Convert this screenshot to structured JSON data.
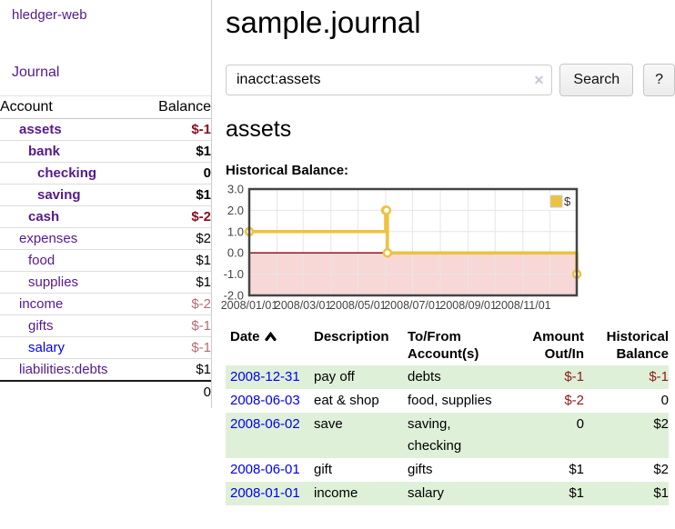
{
  "app_title": "hledger-web",
  "sidebar": {
    "journal_link": "Journal",
    "accounts": {
      "header": {
        "account": "Account",
        "balance": "Balance"
      },
      "rows": [
        {
          "name": "assets",
          "balance": "$-1"
        },
        {
          "name": "bank",
          "balance": "$1"
        },
        {
          "name": "checking",
          "balance": "0"
        },
        {
          "name": "saving",
          "balance": "$1"
        },
        {
          "name": "cash",
          "balance": "$-2"
        },
        {
          "name": "expenses",
          "balance": "$2"
        },
        {
          "name": "food",
          "balance": "$1"
        },
        {
          "name": "supplies",
          "balance": "$1"
        },
        {
          "name": "income",
          "balance": "$-2"
        },
        {
          "name": "gifts",
          "balance": "$-1"
        },
        {
          "name": "salary",
          "balance": "$-1"
        },
        {
          "name": "liabilities:debts",
          "balance": "$1"
        }
      ],
      "total": "0"
    }
  },
  "main": {
    "title": "sample.journal",
    "search": {
      "value": "inacct:assets",
      "clear_icon": "✕",
      "button_label": "Search",
      "help_label": "?"
    },
    "account_heading": "assets",
    "chart_heading": "Historical Balance:"
  },
  "chart_data": {
    "type": "line",
    "step": true,
    "title": "Historical Balance",
    "series": [
      {
        "name": "$",
        "color": "#EDC240",
        "points": [
          [
            "2008-01-01",
            1
          ],
          [
            "2008-06-01",
            2
          ],
          [
            "2008-06-02",
            2
          ],
          [
            "2008-06-03",
            0
          ],
          [
            "2008-12-31",
            -1
          ]
        ]
      }
    ],
    "xrange": [
      "2008-01-01",
      "2008-12-31"
    ],
    "ylim": [
      -2,
      3
    ],
    "yticks": [
      "3.0",
      "2.0",
      "1.0",
      "0.0",
      "-1.0",
      "-2.0"
    ],
    "xticks": [
      "2008/01/01",
      "2008/03/01",
      "2008/05/01",
      "2008/07/01",
      "2008/09/01",
      "2008/11/01"
    ],
    "grid": true,
    "legend_position": "top-right",
    "negative_region_color": "#f8d7d7",
    "zero_line_color": "#8b0000"
  },
  "register": {
    "columns": [
      {
        "line1": "Date",
        "line2": ""
      },
      {
        "line1": "Description",
        "line2": ""
      },
      {
        "line1": "To/From",
        "line2": "Account(s)"
      },
      {
        "line1": "Amount",
        "line2": "Out/In"
      },
      {
        "line1": "Historical",
        "line2": "Balance"
      }
    ],
    "rows": [
      {
        "date": "2008-12-31",
        "description": "pay off",
        "accounts": "debts",
        "amount": "$-1",
        "balance": "$-1"
      },
      {
        "date": "2008-06-03",
        "description": "eat & shop",
        "accounts": "food, supplies",
        "amount": "$-2",
        "balance": "0"
      },
      {
        "date": "2008-06-02",
        "description": "save",
        "accounts": "saving, checking",
        "amount": "0",
        "balance": "$2"
      },
      {
        "date": "2008-06-01",
        "description": "gift",
        "accounts": "gifts",
        "amount": "$1",
        "balance": "$2"
      },
      {
        "date": "2008-01-01",
        "description": "income",
        "accounts": "salary",
        "amount": "$1",
        "balance": "$1"
      }
    ]
  },
  "colors": {
    "link_visited": "#551A8B",
    "link_unvisited": "#0000EE",
    "negative_bold": "#8b0c1e",
    "negative_muted": "#b56b73",
    "negative_register": "#8b1a1a",
    "row_highlight_green": "#dff0d8",
    "chart_series_yellow": "#EDC240"
  }
}
